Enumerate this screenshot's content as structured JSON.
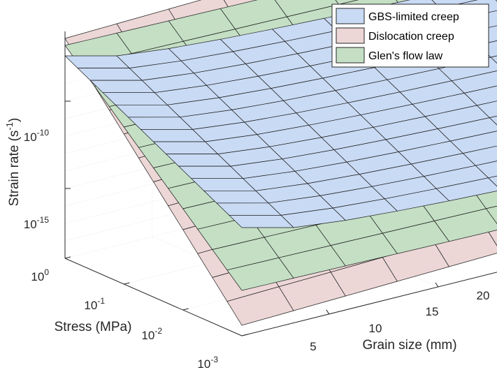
{
  "chart_data": {
    "type": "surface",
    "title": "",
    "xlabel": "Grain size (mm)",
    "ylabel": "Stress (MPa)",
    "zlabel": "Strain rate (s⁻¹)",
    "zlabel_base": "Strain rate (s",
    "zlabel_sup": "-1",
    "zlabel_close": ")",
    "x_ticks": [
      "5",
      "10",
      "15",
      "20"
    ],
    "y_ticks": [
      {
        "base": "10",
        "exp": "0"
      },
      {
        "base": "10",
        "exp": "-1"
      },
      {
        "base": "10",
        "exp": "-2"
      },
      {
        "base": "10",
        "exp": "-3"
      }
    ],
    "z_ticks": [
      {
        "base": "10",
        "exp": "-10"
      },
      {
        "base": "10",
        "exp": "-15"
      }
    ],
    "x_range": [
      1,
      20
    ],
    "y_range_log10": [
      -3,
      0
    ],
    "z_range_log10": [
      -19,
      -6
    ],
    "y_scale": "log",
    "z_scale": "log",
    "grid": true,
    "legend_position": "top-right",
    "series": [
      {
        "name": "GBS-limited creep",
        "color": "#c9daf4"
      },
      {
        "name": "Dislocation creep",
        "color": "#ecd6d6"
      },
      {
        "name": "Glen's flow law",
        "color": "#c4dfc4"
      }
    ]
  }
}
